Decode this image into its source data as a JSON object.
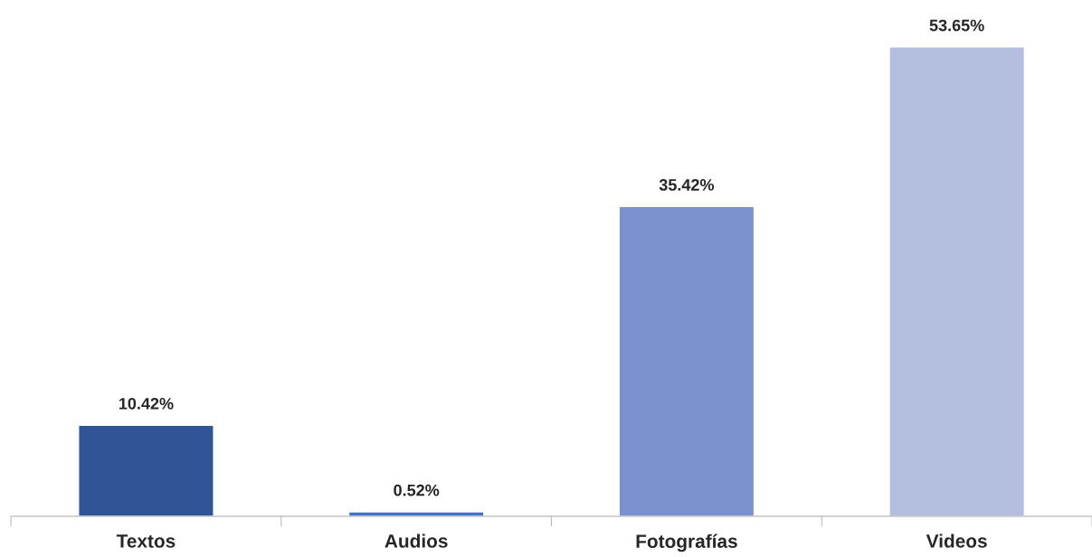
{
  "chart_data": {
    "type": "bar",
    "categories": [
      "Textos",
      "Audios",
      "Fotografías",
      "Videos"
    ],
    "values": [
      10.42,
      0.52,
      35.42,
      53.65
    ],
    "colors": [
      "#2f5597",
      "#4472c4",
      "#7a91cf",
      "#b4bfe0"
    ],
    "value_labels": [
      "10.42%",
      "0.52%",
      "35.42%",
      "53.65%"
    ],
    "grid": false,
    "legend": false
  }
}
